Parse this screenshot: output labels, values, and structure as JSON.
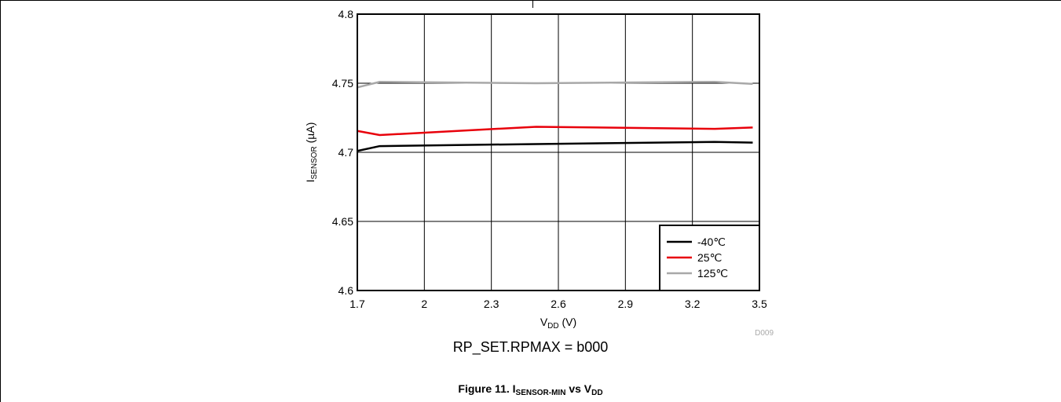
{
  "chart_data": {
    "type": "line",
    "xlabel": {
      "main": "V",
      "sub": "DD",
      "unit": " (V)"
    },
    "ylabel": {
      "main": "I",
      "sub": "SENSOR",
      "unit": " (µA)"
    },
    "xlim": [
      1.7,
      3.5
    ],
    "ylim": [
      4.6,
      4.8
    ],
    "x_ticks": [
      "1.7",
      "2",
      "2.3",
      "2.6",
      "2.9",
      "3.2",
      "3.5"
    ],
    "y_ticks": [
      "4.6",
      "4.65",
      "4.7",
      "4.75",
      "4.8"
    ],
    "grid": true,
    "legend_position": "bottom-right",
    "series": [
      {
        "name": "-40℃",
        "color": "#000000",
        "x": [
          1.7,
          1.8,
          2.5,
          3.3,
          3.47
        ],
        "y": [
          4.701,
          4.7045,
          4.706,
          4.7075,
          4.707
        ]
      },
      {
        "name": "25℃",
        "color": "#e8000b",
        "x": [
          1.7,
          1.8,
          2.5,
          3.3,
          3.47
        ],
        "y": [
          4.7155,
          4.7125,
          4.7185,
          4.717,
          4.718
        ]
      },
      {
        "name": "125℃",
        "color": "#a8a8a8",
        "x": [
          1.7,
          1.8,
          2.5,
          3.3,
          3.47
        ],
        "y": [
          4.747,
          4.751,
          4.75,
          4.751,
          4.7495
        ]
      }
    ],
    "code": "D009"
  },
  "note": "RP_SET.RPMAX = b000",
  "caption": {
    "prefix": "Figure 11. I",
    "sub1": "SENSOR-MIN",
    "mid": " vs V",
    "sub2": "DD"
  }
}
